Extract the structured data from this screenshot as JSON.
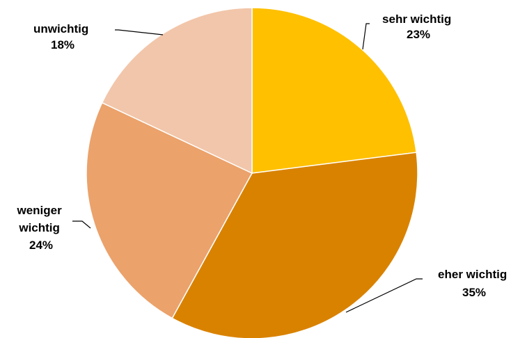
{
  "chart_data": {
    "type": "pie",
    "title": "",
    "slices": [
      {
        "label": "sehr wichtig",
        "value": 23,
        "value_label": "23%",
        "color": "#FFC000"
      },
      {
        "label": "eher wichtig",
        "value": 35,
        "value_label": "35%",
        "color": "#D98200"
      },
      {
        "label": "weniger wichtig",
        "label_lines": [
          "weniger",
          "wichtig"
        ],
        "value": 24,
        "value_label": "24%",
        "color": "#EBA26B"
      },
      {
        "label": "unwichtig",
        "value": 18,
        "value_label": "18%",
        "color": "#F2C6AA"
      }
    ],
    "start_angle": "12 o'clock",
    "direction": "clockwise",
    "legend": "none",
    "label_position": "outside with leader lines"
  }
}
